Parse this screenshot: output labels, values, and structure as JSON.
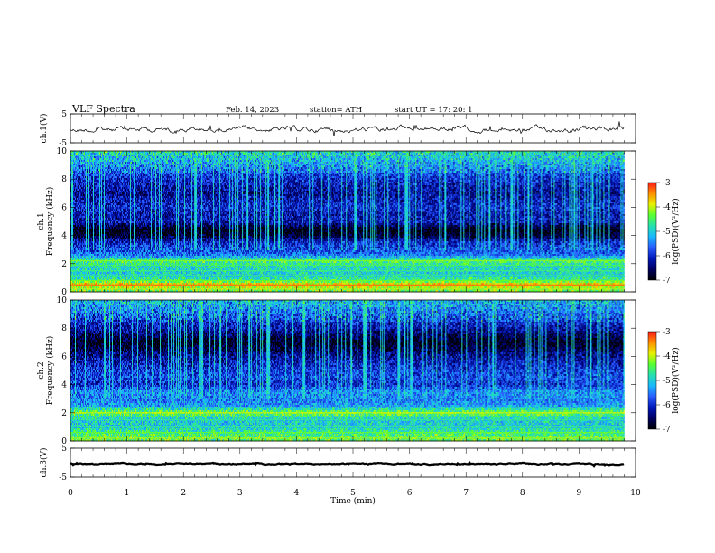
{
  "header": {
    "title": "VLF  Spectra",
    "date": "Feb. 14, 2023",
    "station": "station= ATH",
    "start": "start  UT  =    17: 20: 1"
  },
  "chart_data": [
    {
      "type": "line",
      "name": "ch1-waveform",
      "ylabel": "ch.1(V)",
      "ylim": [
        -5,
        5
      ],
      "yticks": [
        5,
        -5
      ],
      "xlim": [
        0,
        10
      ],
      "data_extent_min": [
        0,
        9.8
      ],
      "level": -0.4,
      "noise_amplitude": 0.6
    },
    {
      "type": "heatmap",
      "name": "ch1-spectrogram",
      "ylabel": "Frequency  (kHz)",
      "channel_label": "ch.1",
      "ylim": [
        0,
        10
      ],
      "yticks": [
        0,
        2,
        4,
        6,
        8,
        10
      ],
      "xlim": [
        0,
        10
      ],
      "data_extent_min": [
        0,
        9.8
      ],
      "colorbar": {
        "label": "log(PSD)(V²/Hz)",
        "range": [
          -7,
          -3
        ],
        "ticks": [
          "-3",
          "-4",
          "-5",
          "-6",
          "-7"
        ]
      },
      "bands_khz": [
        {
          "f": 0.2,
          "v": -4.3
        },
        {
          "f": 0.5,
          "v": -3.6
        },
        {
          "f": 0.8,
          "v": -4.6
        },
        {
          "f": 1.2,
          "v": -5.0
        },
        {
          "f": 1.5,
          "v": -4.9
        },
        {
          "f": 1.9,
          "v": -4.8
        },
        {
          "f": 2.2,
          "v": -4.5
        },
        {
          "f": 2.6,
          "v": -5.5
        },
        {
          "f": 3.0,
          "v": -5.8
        },
        {
          "f": 3.5,
          "v": -6.0
        },
        {
          "f": 4.0,
          "v": -6.8
        },
        {
          "f": 4.4,
          "v": -7.0
        },
        {
          "f": 5.0,
          "v": -6.1
        },
        {
          "f": 5.5,
          "v": -6.2
        },
        {
          "f": 6.0,
          "v": -6.0
        },
        {
          "f": 7.0,
          "v": -6.3
        },
        {
          "f": 8.0,
          "v": -6.0
        },
        {
          "f": 9.0,
          "v": -5.5
        },
        {
          "f": 10.0,
          "v": -5.0
        }
      ]
    },
    {
      "type": "heatmap",
      "name": "ch2-spectrogram",
      "ylabel": "Frequency  (kHz)",
      "channel_label": "ch.2",
      "ylim": [
        0,
        10
      ],
      "yticks": [
        0,
        2,
        4,
        6,
        8,
        10
      ],
      "xlim": [
        0,
        10
      ],
      "data_extent_min": [
        0,
        9.8
      ],
      "colorbar": {
        "label": "log(PSD)(V²/Hz)",
        "range": [
          -7,
          -3
        ],
        "ticks": [
          "-3",
          "-4",
          "-5",
          "-6",
          "-7"
        ]
      },
      "bands_khz": [
        {
          "f": 0.2,
          "v": -4.4
        },
        {
          "f": 0.6,
          "v": -4.6
        },
        {
          "f": 1.0,
          "v": -5.0
        },
        {
          "f": 1.5,
          "v": -5.0
        },
        {
          "f": 2.0,
          "v": -4.3
        },
        {
          "f": 2.5,
          "v": -5.3
        },
        {
          "f": 3.0,
          "v": -5.5
        },
        {
          "f": 3.5,
          "v": -5.4
        },
        {
          "f": 4.0,
          "v": -6.0
        },
        {
          "f": 4.5,
          "v": -5.8
        },
        {
          "f": 5.0,
          "v": -5.9
        },
        {
          "f": 6.0,
          "v": -6.3
        },
        {
          "f": 7.0,
          "v": -6.9
        },
        {
          "f": 8.0,
          "v": -6.2
        },
        {
          "f": 9.0,
          "v": -5.8
        },
        {
          "f": 10.0,
          "v": -5.3
        }
      ]
    },
    {
      "type": "line",
      "name": "ch3-waveform",
      "ylabel": "ch.3(V)",
      "ylim": [
        -5,
        5
      ],
      "yticks": [
        5,
        -5
      ],
      "xlim": [
        0,
        10
      ],
      "xticks": [
        0,
        1,
        2,
        3,
        4,
        5,
        6,
        7,
        8,
        9,
        10
      ],
      "xlabel": "Time  (min)",
      "data_extent_min": [
        0,
        9.8
      ],
      "level": -0.5,
      "noise_amplitude": 0.15
    }
  ],
  "colors": {
    "colormap": [
      "#000000",
      "#000060",
      "#0018b8",
      "#2a5cff",
      "#19b8ff",
      "#26e0b0",
      "#58ff30",
      "#e8f000",
      "#ff9000",
      "#ff1a1a",
      "#ffffff"
    ]
  }
}
